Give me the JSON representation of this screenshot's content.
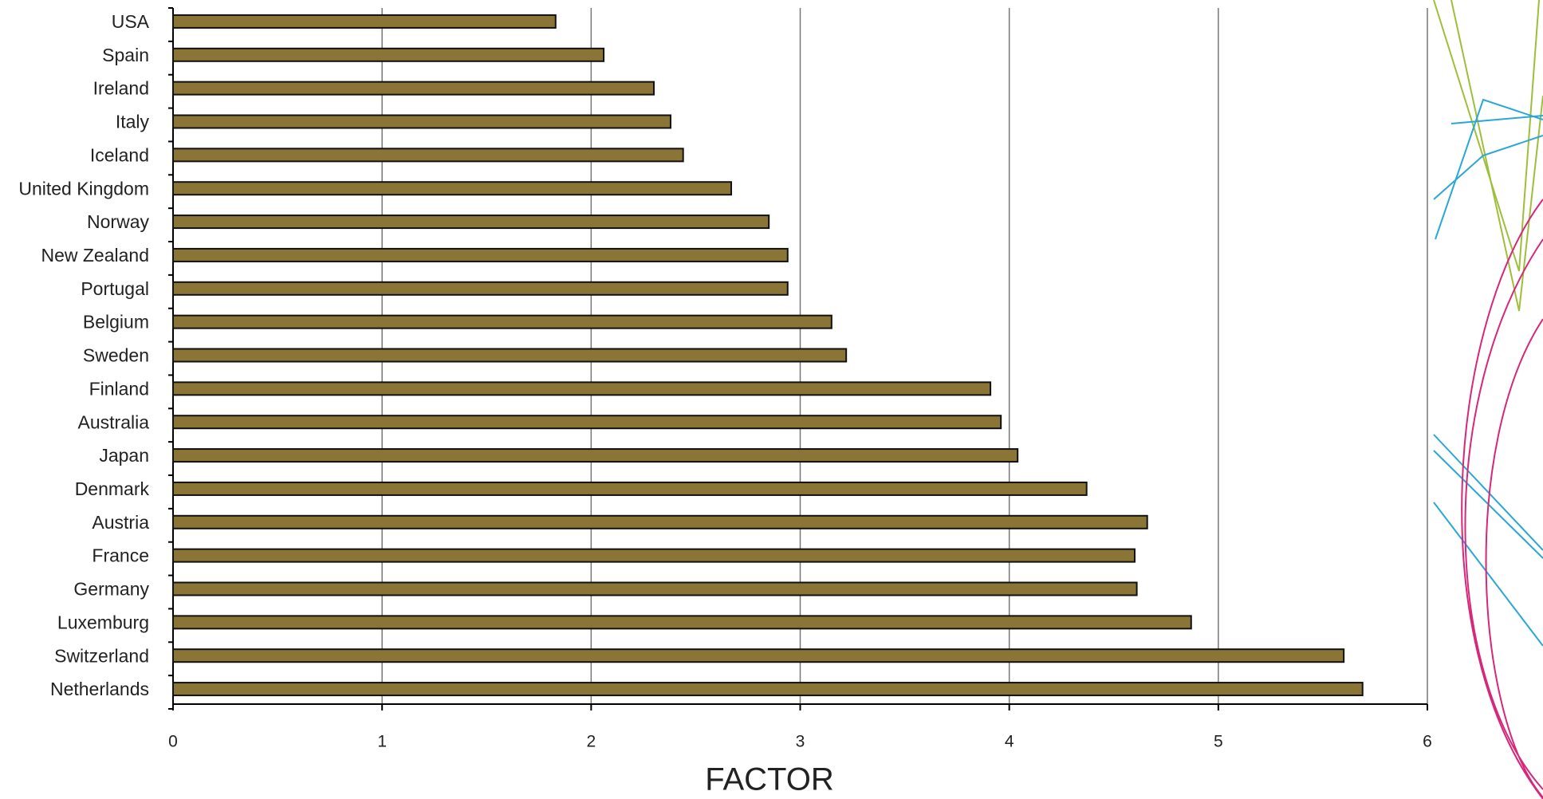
{
  "chart_data": {
    "type": "barh",
    "x_label": "FACTOR",
    "categories": [
      "USA",
      "Spain",
      "Ireland",
      "Italy",
      "Iceland",
      "United Kingdom",
      "Norway",
      "New Zealand",
      "Portugal",
      "Belgium",
      "Sweden",
      "Finland",
      "Australia",
      "Japan",
      "Denmark",
      "Austria",
      "France",
      "Germany",
      "Luxemburg",
      "Switzerland",
      "Netherlands"
    ],
    "values": [
      1.83,
      2.06,
      2.3,
      2.38,
      2.44,
      2.67,
      2.85,
      2.94,
      2.94,
      3.15,
      3.22,
      3.91,
      3.96,
      4.04,
      4.37,
      4.66,
      4.6,
      4.61,
      4.87,
      5.6,
      5.69
    ],
    "color": "#8b7536",
    "xlim": [
      0,
      6
    ],
    "xticks": [
      0,
      1,
      2,
      3,
      4,
      5,
      6
    ],
    "grid": true
  }
}
